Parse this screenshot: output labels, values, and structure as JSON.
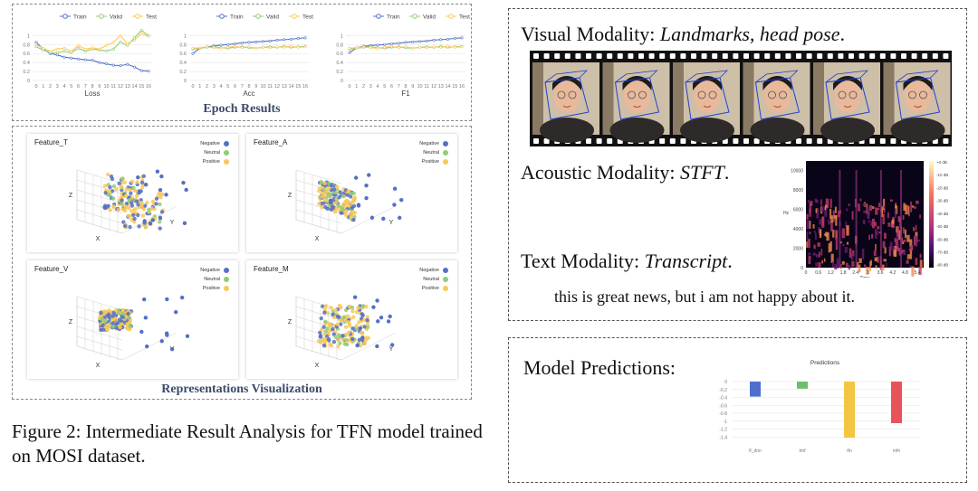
{
  "epoch_results": {
    "title": "Epoch Results",
    "legend": [
      "Train",
      "Valid",
      "Test"
    ],
    "charts": [
      {
        "xlabel": "Loss",
        "ylim": [
          0,
          1.25
        ],
        "yticks": [
          "0",
          "0.2",
          "0.4",
          "0.6",
          "0.8",
          "1"
        ],
        "series": [
          {
            "name": "Train",
            "values": [
              0.85,
              0.7,
              0.6,
              0.57,
              0.52,
              0.5,
              0.48,
              0.46,
              0.45,
              0.4,
              0.37,
              0.34,
              0.33,
              0.36,
              0.3,
              0.22,
              0.21
            ]
          },
          {
            "name": "Valid",
            "values": [
              0.75,
              0.68,
              0.62,
              0.62,
              0.65,
              0.62,
              0.72,
              0.65,
              0.7,
              0.68,
              0.66,
              0.7,
              0.86,
              0.78,
              0.95,
              1.12,
              1.0
            ]
          },
          {
            "name": "Test",
            "values": [
              0.8,
              0.72,
              0.65,
              0.7,
              0.72,
              0.65,
              0.78,
              0.7,
              0.73,
              0.7,
              0.78,
              0.85,
              1.0,
              0.82,
              0.9,
              1.05,
              0.98
            ]
          }
        ]
      },
      {
        "xlabel": "Acc",
        "ylim": [
          0,
          1.25
        ],
        "yticks": [
          "0",
          "0.2",
          "0.4",
          "0.6",
          "0.8",
          "1"
        ],
        "series": [
          {
            "name": "Train",
            "values": [
              0.6,
              0.72,
              0.75,
              0.77,
              0.79,
              0.8,
              0.82,
              0.84,
              0.85,
              0.86,
              0.87,
              0.88,
              0.9,
              0.91,
              0.92,
              0.94,
              0.95
            ]
          },
          {
            "name": "Valid",
            "values": [
              0.7,
              0.72,
              0.74,
              0.75,
              0.73,
              0.72,
              0.74,
              0.75,
              0.73,
              0.72,
              0.74,
              0.75,
              0.74,
              0.76,
              0.74,
              0.75,
              0.76
            ]
          },
          {
            "name": "Test",
            "values": [
              0.72,
              0.73,
              0.75,
              0.73,
              0.72,
              0.74,
              0.76,
              0.73,
              0.75,
              0.72,
              0.74,
              0.73,
              0.75,
              0.74,
              0.76,
              0.74,
              0.75
            ]
          }
        ]
      },
      {
        "xlabel": "F1",
        "ylim": [
          0,
          1.25
        ],
        "yticks": [
          "0",
          "0.2",
          "0.4",
          "0.6",
          "0.8",
          "1"
        ],
        "series": [
          {
            "name": "Train",
            "values": [
              0.62,
              0.73,
              0.76,
              0.78,
              0.79,
              0.8,
              0.82,
              0.83,
              0.85,
              0.86,
              0.87,
              0.88,
              0.9,
              0.91,
              0.92,
              0.94,
              0.95
            ]
          },
          {
            "name": "Valid",
            "values": [
              0.7,
              0.72,
              0.74,
              0.75,
              0.73,
              0.72,
              0.74,
              0.75,
              0.73,
              0.72,
              0.74,
              0.75,
              0.74,
              0.76,
              0.74,
              0.75,
              0.76
            ]
          },
          {
            "name": "Test",
            "values": [
              0.72,
              0.73,
              0.75,
              0.73,
              0.72,
              0.74,
              0.76,
              0.73,
              0.75,
              0.72,
              0.74,
              0.73,
              0.75,
              0.74,
              0.76,
              0.74,
              0.75
            ]
          }
        ]
      }
    ],
    "xticks": [
      "0",
      "1",
      "2",
      "3",
      "4",
      "5",
      "6",
      "7",
      "8",
      "9",
      "10",
      "11",
      "12",
      "13",
      "14",
      "15",
      "16"
    ]
  },
  "representations": {
    "title": "Representations Visualization",
    "legend": [
      "Negative",
      "Neutral",
      "Positive"
    ],
    "cards": [
      {
        "title": "Feature_T"
      },
      {
        "title": "Feature_A"
      },
      {
        "title": "Feature_V"
      },
      {
        "title": "Feature_M"
      }
    ]
  },
  "caption": "Figure 2: Intermediate Result Analysis for TFN model trained on MOSI dataset.",
  "modalities": {
    "visual": {
      "label": "Visual Modality: ",
      "detail": "Landmarks, head pose",
      "end": "."
    },
    "acoustic": {
      "label": "Acoustic Modality: ",
      "detail": "STFT",
      "end": "."
    },
    "text": {
      "label": "Text Modality: ",
      "detail": "Transcript",
      "end": "."
    },
    "transcript": "this is great news, but i am not happy about it.",
    "spectrogram": {
      "yticks": [
        "0",
        "2000",
        "4000",
        "6000",
        "8000",
        "10000"
      ],
      "xticks": [
        "0",
        "0.6",
        "1.2",
        "1.8",
        "2.4",
        "3",
        "3.6",
        "4.2",
        "4.8",
        "5.4"
      ],
      "xlabel": "Time",
      "ylabel": "Hz",
      "cbar": [
        "+0 dB",
        "-10 dB",
        "-20 dB",
        "-30 dB",
        "-40 dB",
        "-50 dB",
        "-60 dB",
        "-70 dB",
        "-80 dB"
      ]
    }
  },
  "predictions": {
    "label": "Model Predictions:",
    "chart_data": {
      "type": "bar",
      "title": "Predictions",
      "categories": [
        "lf_dnn",
        "tmf",
        "tfn",
        "mfn"
      ],
      "values": [
        -0.38,
        -0.18,
        -1.42,
        -1.05
      ],
      "colors": [
        "#4e6fcf",
        "#6cc06a",
        "#f4c542",
        "#e8535b"
      ],
      "ylim": [
        -1.6,
        0
      ],
      "yticks": [
        "0",
        "-0.2",
        "-0.4",
        "-0.6",
        "-0.8",
        "-1",
        "-1.2",
        "-1.4"
      ]
    }
  },
  "colors": {
    "train": "#5470c6",
    "valid": "#91cc75",
    "test": "#fac858",
    "negative": "#5470c6",
    "neutral": "#91cc75",
    "positive": "#fac858"
  }
}
